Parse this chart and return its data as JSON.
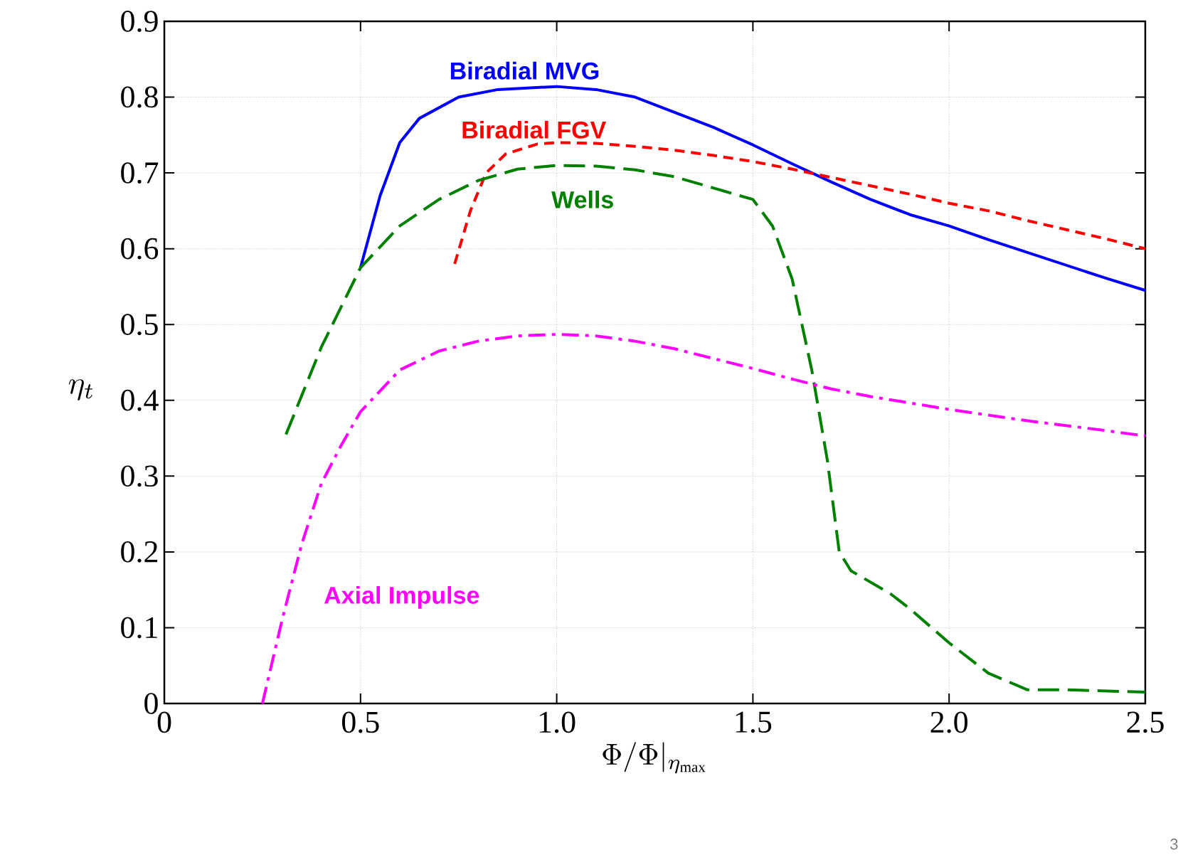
{
  "chart_data": {
    "type": "line",
    "xlabel": "\\Phi/\\Phi|_{\\eta_{\\max}}",
    "ylabel": "\\eta_t",
    "xlim": [
      0,
      2.5
    ],
    "ylim": [
      0,
      0.9
    ],
    "xticks": [
      0,
      0.5,
      {
        "value": 1.0,
        "label": "1.0"
      },
      1.5,
      {
        "value": 2.0,
        "label": "2.0"
      },
      2.5
    ],
    "yticks": [
      0,
      0.1,
      0.2,
      0.3,
      0.4,
      0.5,
      0.6,
      0.7,
      0.8,
      0.9
    ],
    "grid": true,
    "marker": "none",
    "annotations": [
      "3"
    ],
    "series": [
      {
        "name": "Biradial MVG",
        "color": "#0000ff",
        "line_style": "solid",
        "x": [
          0.5,
          0.55,
          0.6,
          0.65,
          0.75,
          0.85,
          1.0,
          1.1,
          1.2,
          1.3,
          1.4,
          1.5,
          1.6,
          1.7,
          1.8,
          1.9,
          2.0,
          2.1,
          2.2,
          2.3,
          2.4,
          2.5
        ],
        "values": [
          0.575,
          0.67,
          0.74,
          0.772,
          0.8,
          0.81,
          0.814,
          0.81,
          0.8,
          0.78,
          0.76,
          0.737,
          0.712,
          0.688,
          0.665,
          0.645,
          0.63,
          0.612,
          0.595,
          0.578,
          0.561,
          0.545
        ]
      },
      {
        "name": "Biradial FGV",
        "color": "#ff0000",
        "line_style": "dashed",
        "x": [
          0.74,
          0.78,
          0.82,
          0.87,
          0.95,
          1.0,
          1.1,
          1.2,
          1.3,
          1.4,
          1.5,
          1.6,
          1.7,
          1.8,
          1.9,
          2.0,
          2.1,
          2.2,
          2.3,
          2.4,
          2.5
        ],
        "values": [
          0.58,
          0.65,
          0.7,
          0.725,
          0.738,
          0.74,
          0.739,
          0.735,
          0.73,
          0.723,
          0.715,
          0.705,
          0.694,
          0.683,
          0.672,
          0.66,
          0.65,
          0.637,
          0.625,
          0.613,
          0.6
        ]
      },
      {
        "name": "Wells",
        "color": "#008000",
        "line_style": "long dashed",
        "x": [
          0.31,
          0.4,
          0.5,
          0.6,
          0.7,
          0.8,
          0.9,
          1.0,
          1.1,
          1.2,
          1.3,
          1.4,
          1.5,
          1.55,
          1.6,
          1.65,
          1.69,
          1.72,
          1.75,
          1.85,
          1.9,
          2.0,
          2.1,
          2.2,
          2.3,
          2.5
        ],
        "values": [
          0.355,
          0.47,
          0.575,
          0.63,
          0.665,
          0.69,
          0.705,
          0.71,
          0.709,
          0.704,
          0.695,
          0.68,
          0.665,
          0.63,
          0.56,
          0.44,
          0.32,
          0.2,
          0.175,
          0.145,
          0.125,
          0.08,
          0.04,
          0.018,
          0.018,
          0.015
        ]
      },
      {
        "name": "Axial Impulse",
        "color": "#ff00ff",
        "line_style": "dash dot",
        "x": [
          0.25,
          0.3,
          0.35,
          0.4,
          0.45,
          0.5,
          0.6,
          0.7,
          0.8,
          0.9,
          1.0,
          1.1,
          1.2,
          1.3,
          1.4,
          1.5,
          1.6,
          1.7,
          1.8,
          2.0,
          2.2,
          2.4,
          2.5
        ],
        "values": [
          0.0,
          0.11,
          0.21,
          0.29,
          0.34,
          0.385,
          0.44,
          0.465,
          0.478,
          0.485,
          0.487,
          0.485,
          0.478,
          0.468,
          0.455,
          0.442,
          0.428,
          0.415,
          0.405,
          0.388,
          0.373,
          0.36,
          0.353
        ]
      }
    ]
  }
}
